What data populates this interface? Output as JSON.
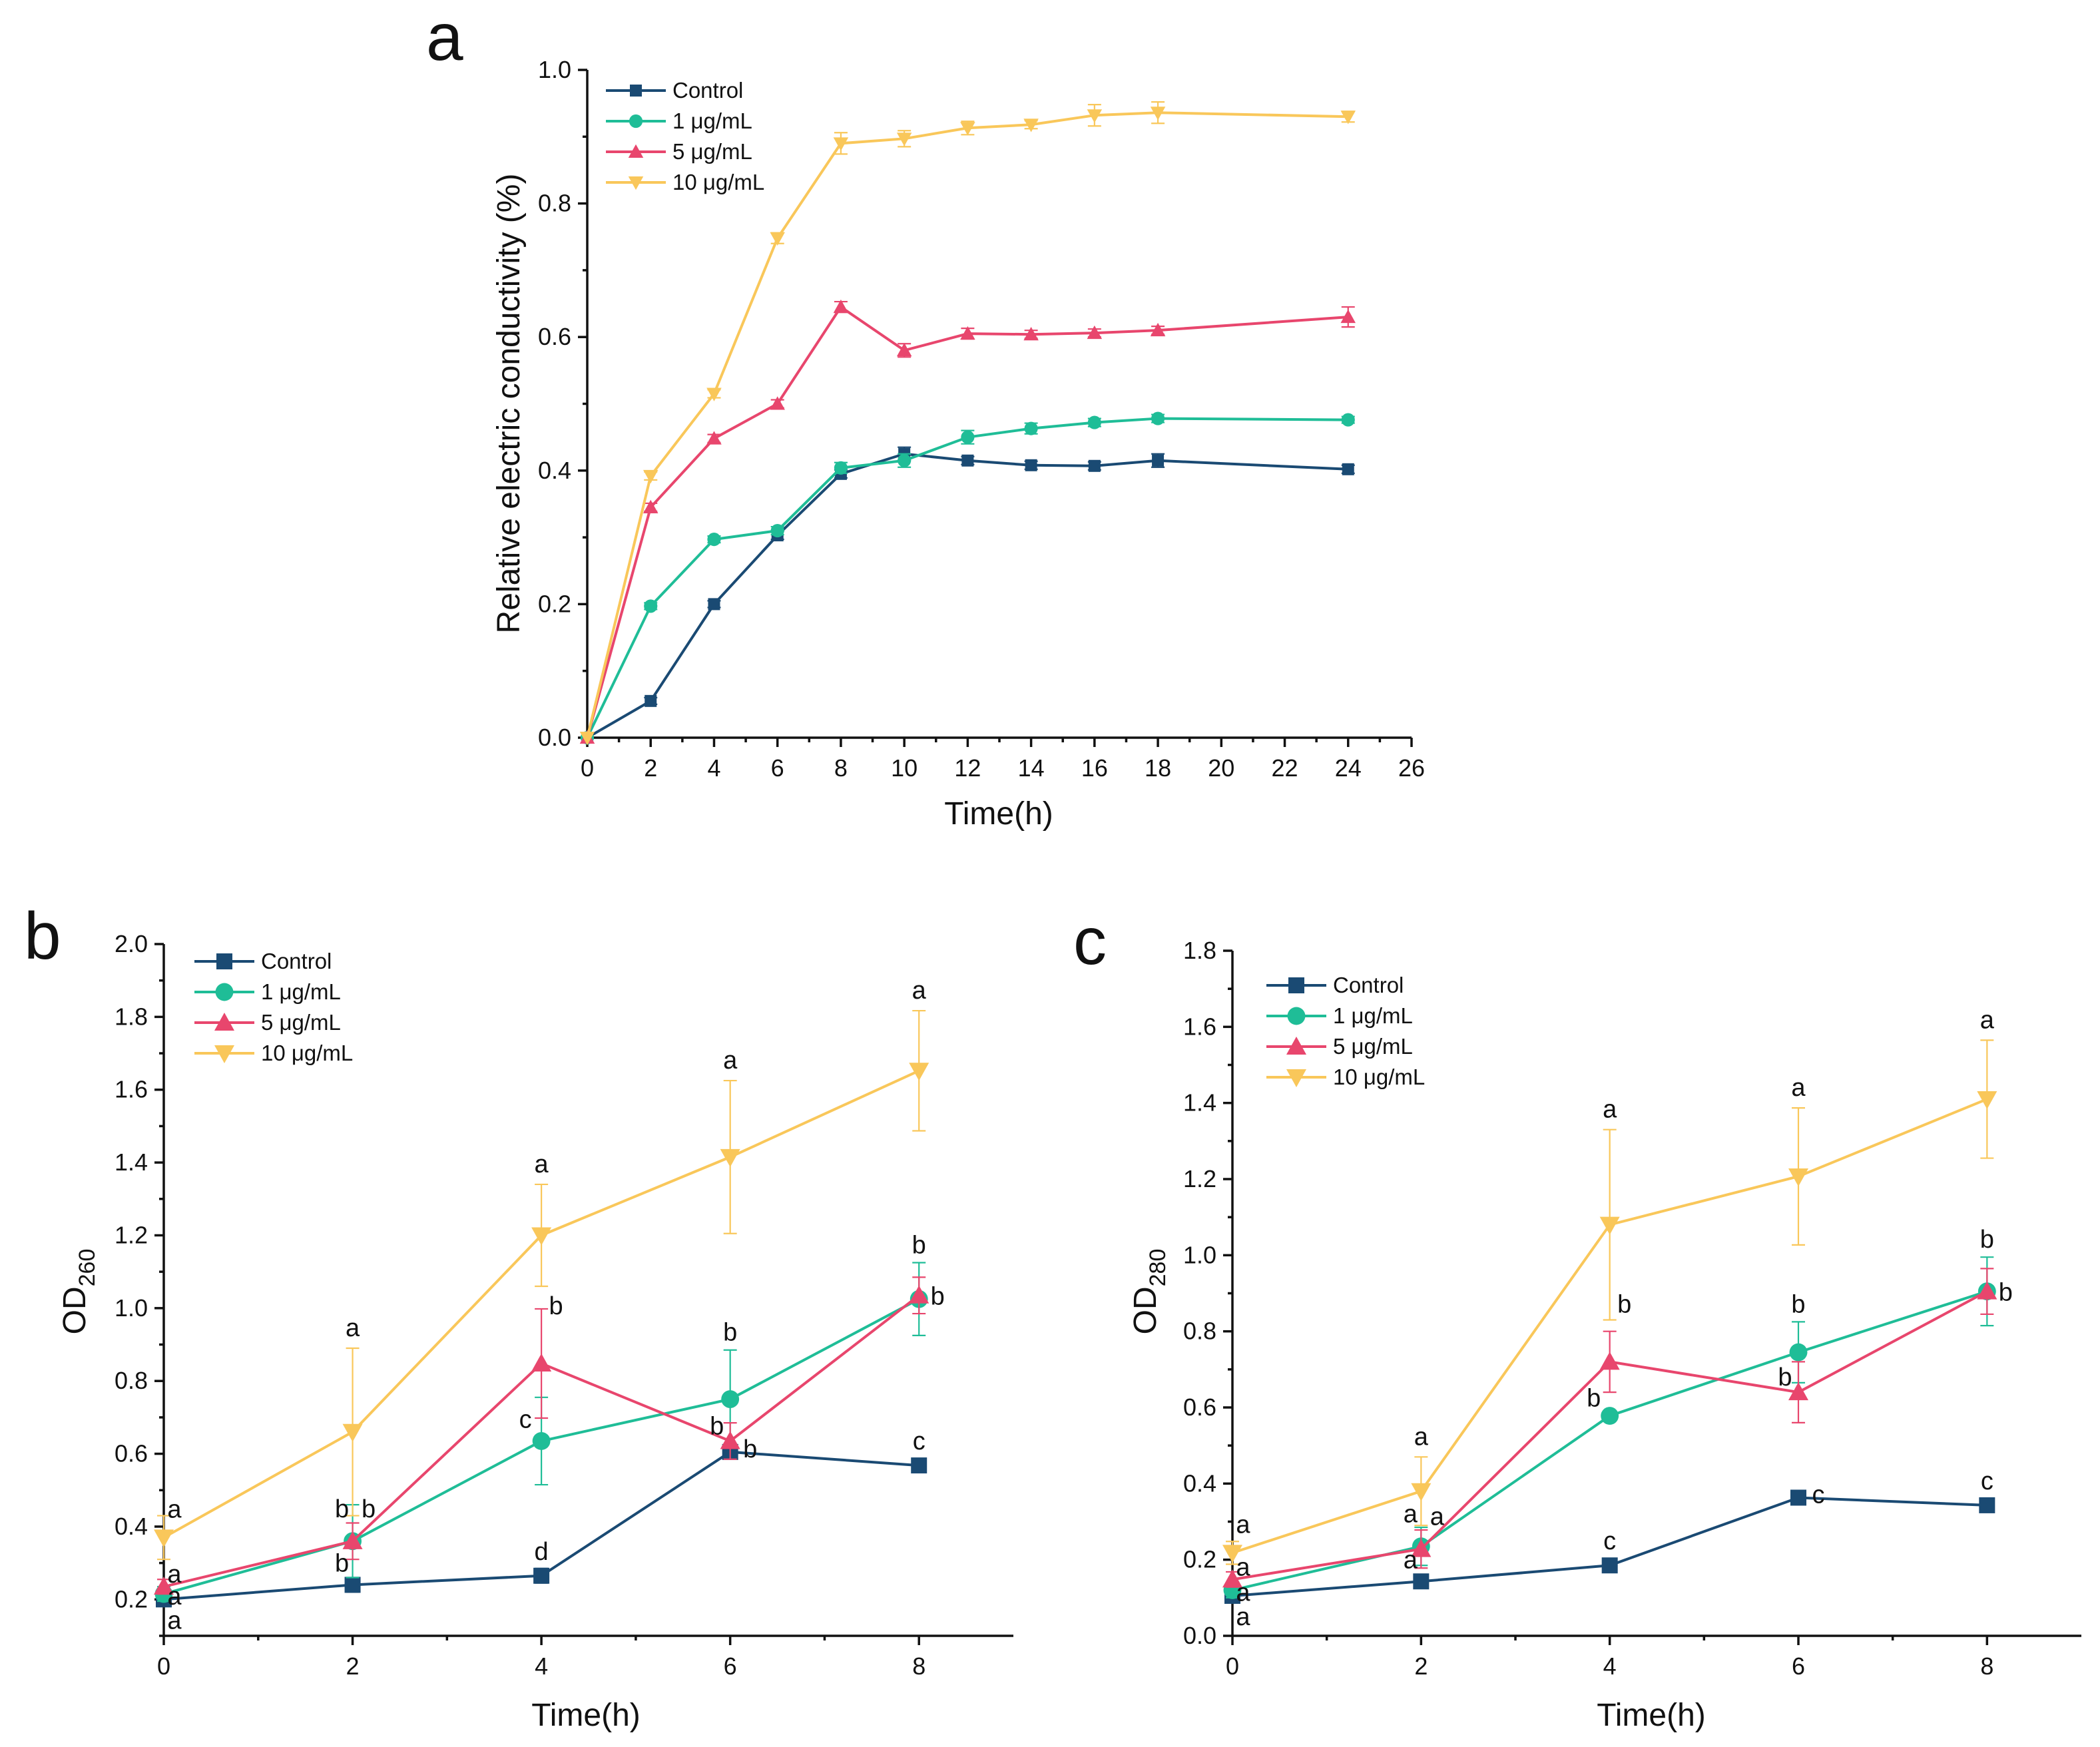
{
  "chart_data": [
    {
      "panel": "a",
      "type": "line",
      "xlabel": "Time(h)",
      "ylabel": "Relative electric conductivity (%)",
      "xlim": [
        0,
        26
      ],
      "ylim": [
        0,
        1.0
      ],
      "xticks": [
        "0",
        "2",
        "4",
        "6",
        "8",
        "10",
        "12",
        "14",
        "16",
        "18",
        "20",
        "22",
        "24",
        "26"
      ],
      "yticks": [
        "0.0",
        "0.2",
        "0.4",
        "0.6",
        "0.8",
        "1.0"
      ],
      "legend_position": "top-left",
      "x": [
        0,
        2,
        4,
        6,
        8,
        10,
        12,
        14,
        16,
        18,
        24
      ],
      "series": [
        {
          "name": "Control",
          "marker": "square",
          "color": "#1a4a73",
          "values": [
            0,
            0.055,
            0.2,
            0.303,
            0.395,
            0.425,
            0.415,
            0.408,
            0.407,
            0.415,
            0.402
          ],
          "errors": [
            0,
            0.005,
            0.005,
            0.006,
            0.006,
            0.01,
            0.006,
            0.006,
            0.006,
            0.01,
            0.006
          ]
        },
        {
          "name": "1 μg/mL",
          "marker": "circle",
          "color": "#1fbd97",
          "values": [
            0,
            0.197,
            0.297,
            0.31,
            0.404,
            0.415,
            0.45,
            0.463,
            0.472,
            0.478,
            0.476
          ],
          "errors": [
            0,
            0.005,
            0.005,
            0.006,
            0.008,
            0.01,
            0.01,
            0.008,
            0.006,
            0.006,
            0.005
          ]
        },
        {
          "name": "5 μg/mL",
          "marker": "triangle-up",
          "color": "#e8466d",
          "values": [
            0,
            0.345,
            0.448,
            0.5,
            0.645,
            0.58,
            0.605,
            0.604,
            0.606,
            0.61,
            0.63
          ],
          "errors": [
            0,
            0.006,
            0.006,
            0.006,
            0.008,
            0.01,
            0.008,
            0.006,
            0.006,
            0.006,
            0.015
          ]
        },
        {
          "name": "10 μg/mL",
          "marker": "triangle-down",
          "color": "#f9c75a",
          "values": [
            0,
            0.392,
            0.515,
            0.748,
            0.89,
            0.897,
            0.913,
            0.918,
            0.932,
            0.936,
            0.93
          ],
          "errors": [
            0,
            0.006,
            0.006,
            0.008,
            0.016,
            0.012,
            0.01,
            0.006,
            0.016,
            0.016,
            0.008
          ]
        }
      ]
    },
    {
      "panel": "b",
      "type": "line",
      "xlabel": "Time(h)",
      "ylabel": "OD",
      "ylabel_sub": "260",
      "xlim": [
        0,
        9
      ],
      "ylim": [
        0.1,
        2.0
      ],
      "xticks": [
        "0",
        "2",
        "4",
        "6",
        "8"
      ],
      "yticks": [
        "0.2",
        "0.4",
        "0.6",
        "0.8",
        "1.0",
        "1.2",
        "1.4",
        "1.6",
        "1.8",
        "2.0"
      ],
      "legend_position": "top-left",
      "x": [
        0,
        2,
        4,
        6,
        8
      ],
      "series": [
        {
          "name": "Control",
          "marker": "square",
          "color": "#1a4a73",
          "values": [
            0.2,
            0.24,
            0.265,
            0.605,
            0.568
          ],
          "errors": [
            0.01,
            0.02,
            0.02,
            0.02,
            0.01
          ],
          "letters": [
            "a",
            "b",
            "d",
            "b",
            "c"
          ]
        },
        {
          "name": "1 μg/mL",
          "marker": "circle",
          "color": "#1fbd97",
          "values": [
            0.215,
            0.36,
            0.635,
            0.75,
            1.025
          ],
          "errors": [
            0.02,
            0.1,
            0.12,
            0.135,
            0.1
          ],
          "letters": [
            "a",
            "b",
            "c",
            "b",
            "b"
          ]
        },
        {
          "name": "5 μg/mL",
          "marker": "triangle-up",
          "color": "#e8466d",
          "values": [
            0.235,
            0.36,
            0.848,
            0.635,
            1.035
          ],
          "errors": [
            0.02,
            0.05,
            0.15,
            0.05,
            0.05
          ],
          "letters": [
            "a",
            "b",
            "b",
            "b",
            "b"
          ]
        },
        {
          "name": "10 μg/mL",
          "marker": "triangle-down",
          "color": "#f9c75a",
          "values": [
            0.37,
            0.66,
            1.2,
            1.415,
            1.652
          ],
          "errors": [
            0.06,
            0.23,
            0.14,
            0.21,
            0.165
          ],
          "letters": [
            "a",
            "a",
            "a",
            "a",
            "a"
          ]
        }
      ]
    },
    {
      "panel": "c",
      "type": "line",
      "xlabel": "Time(h)",
      "ylabel": "OD",
      "ylabel_sub": "280",
      "xlim": [
        0,
        9
      ],
      "ylim": [
        0,
        1.8
      ],
      "xticks": [
        "0",
        "2",
        "4",
        "6",
        "8"
      ],
      "yticks": [
        "0.0",
        "0.2",
        "0.4",
        "0.6",
        "0.8",
        "1.0",
        "1.2",
        "1.4",
        "1.6",
        "1.8"
      ],
      "legend_position": "top-left",
      "x": [
        0,
        2,
        4,
        6,
        8
      ],
      "series": [
        {
          "name": "Control",
          "marker": "square",
          "color": "#1a4a73",
          "values": [
            0.105,
            0.143,
            0.185,
            0.363,
            0.343
          ],
          "errors": [
            0.01,
            0.01,
            0.01,
            0.01,
            0.01
          ],
          "letters": [
            "a",
            "a",
            "c",
            "c",
            "c"
          ]
        },
        {
          "name": "1 μg/mL",
          "marker": "circle",
          "color": "#1fbd97",
          "values": [
            0.12,
            0.235,
            0.578,
            0.745,
            0.905
          ],
          "errors": [
            0.02,
            0.05,
            0.01,
            0.08,
            0.09
          ],
          "letters": [
            "a",
            "a",
            "b",
            "b",
            "b"
          ]
        },
        {
          "name": "5 μg/mL",
          "marker": "triangle-up",
          "color": "#e8466d",
          "values": [
            0.148,
            0.228,
            0.72,
            0.64,
            0.905
          ],
          "errors": [
            0.02,
            0.05,
            0.08,
            0.08,
            0.06
          ],
          "letters": [
            "a",
            "a",
            "b",
            "b",
            "b"
          ]
        },
        {
          "name": "10 μg/mL",
          "marker": "triangle-down",
          "color": "#f9c75a",
          "values": [
            0.218,
            0.38,
            1.08,
            1.207,
            1.41
          ],
          "errors": [
            0.03,
            0.09,
            0.25,
            0.18,
            0.155
          ],
          "letters": [
            "a",
            "a",
            "a",
            "a",
            "a"
          ]
        }
      ]
    }
  ]
}
